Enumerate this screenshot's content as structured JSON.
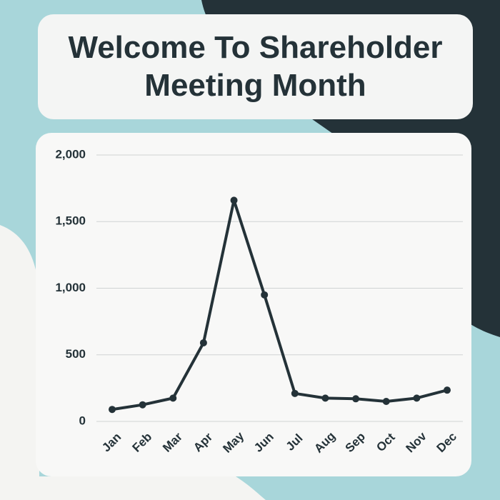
{
  "chart_data": {
    "type": "line",
    "title": "Welcome To Shareholder Meeting Month",
    "categories": [
      "Jan",
      "Feb",
      "Mar",
      "Apr",
      "May",
      "Jun",
      "Jul",
      "Aug",
      "Sep",
      "Oct",
      "Nov",
      "Dec"
    ],
    "values": [
      90,
      125,
      175,
      590,
      1660,
      950,
      210,
      175,
      170,
      150,
      175,
      235
    ],
    "color": "#243238",
    "ylim": [
      0,
      2000
    ],
    "yticks": [
      0,
      {
        "value": 500,
        "label": "500"
      },
      {
        "value": 1000,
        "label": "1,000"
      },
      {
        "value": 1500,
        "label": "1,500"
      },
      {
        "value": 2000,
        "label": "2,000"
      }
    ],
    "grid": true
  }
}
